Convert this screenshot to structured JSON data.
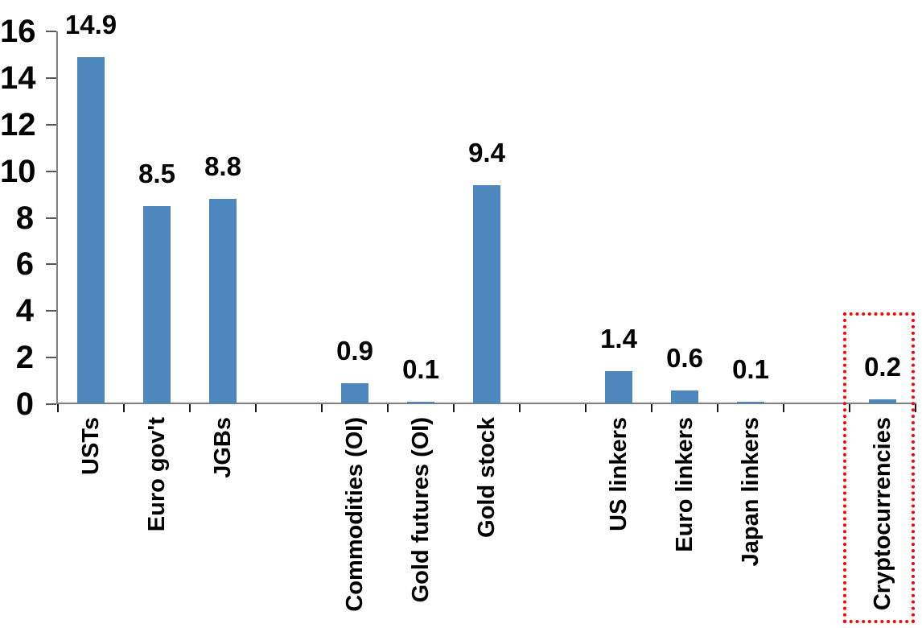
{
  "chart_data": {
    "type": "bar",
    "title": "",
    "categories": [
      "USTs",
      "Euro gov't",
      "JGBs",
      "Commodities (OI)",
      "Gold futures (OI)",
      "Gold stock",
      "US linkers",
      "Euro linkers",
      "Japan linkers",
      "Cryptocurrencies"
    ],
    "values": [
      14.9,
      8.5,
      8.8,
      0.9,
      0.1,
      9.4,
      1.4,
      0.6,
      0.1,
      0.2
    ],
    "data_labels": [
      "14.9",
      "8.5",
      "8.8",
      "0.9",
      "0.1",
      "9.4",
      "1.4",
      "0.6",
      "0.1",
      "0.2"
    ],
    "y_axis": {
      "min": 0,
      "max": 16,
      "step": 2,
      "tick_labels": [
        "0",
        "2",
        "4",
        "6",
        "8",
        "10",
        "12",
        "14",
        "16"
      ]
    },
    "x_axis": {
      "slot_count": 13,
      "category_slots": [
        0,
        1,
        2,
        4,
        5,
        6,
        8,
        9,
        10,
        12
      ],
      "label_rotation_deg": -90
    },
    "legend": false,
    "grid": false,
    "colors": {
      "bar": "#4E86BE",
      "highlight_box": "#FF0000",
      "axis_line": "#808080",
      "axis_tick": "#1A1A1A",
      "text": "#000000"
    },
    "highlight": {
      "category": "Cryptocurrencies",
      "style": "red-dotted-box"
    }
  }
}
